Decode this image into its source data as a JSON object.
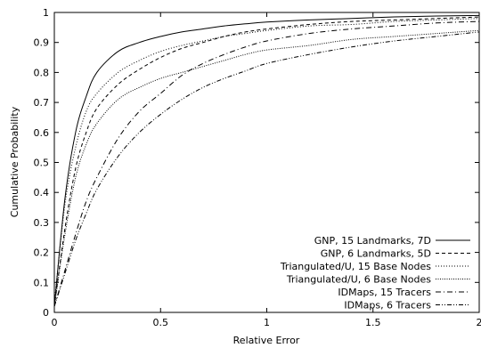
{
  "chart_data": {
    "type": "line",
    "xlabel": "Relative Error",
    "ylabel": "Cumulative Probability",
    "xlim": [
      0,
      2
    ],
    "ylim": [
      0,
      1
    ],
    "x_ticks": [
      0,
      0.5,
      1,
      1.5,
      2
    ],
    "x_tick_labels": [
      "0",
      "0.5",
      "1",
      "1.5",
      "2"
    ],
    "y_ticks": [
      0,
      0.1,
      0.2,
      0.3,
      0.4,
      0.5,
      0.6,
      0.7,
      0.8,
      0.9,
      1
    ],
    "y_tick_labels": [
      "0",
      "0.1",
      "0.2",
      "0.3",
      "0.4",
      "0.5",
      "0.6",
      "0.7",
      "0.8",
      "0.9",
      "1"
    ],
    "grid": false,
    "legend_position": "bottom-right",
    "x": [
      0,
      0.05,
      0.1,
      0.15,
      0.2,
      0.3,
      0.4,
      0.5,
      0.6,
      0.7,
      0.8,
      0.9,
      1.0,
      1.2,
      1.4,
      1.6,
      1.8,
      2.0
    ],
    "series": [
      {
        "name": "GNP, 15 Landmarks, 7D",
        "style": "solid",
        "values": [
          0.02,
          0.38,
          0.6,
          0.72,
          0.8,
          0.87,
          0.9,
          0.92,
          0.935,
          0.945,
          0.955,
          0.962,
          0.968,
          0.975,
          0.98,
          0.985,
          0.988,
          0.99
        ]
      },
      {
        "name": "GNP, 6 Landmarks, 5D",
        "style": "dashed",
        "values": [
          0.02,
          0.28,
          0.48,
          0.6,
          0.68,
          0.76,
          0.81,
          0.85,
          0.88,
          0.9,
          0.92,
          0.935,
          0.945,
          0.96,
          0.97,
          0.975,
          0.98,
          0.985
        ]
      },
      {
        "name": "Triangulated/U, 15 Base Nodes",
        "style": "dotted-fine",
        "values": [
          0.03,
          0.36,
          0.55,
          0.67,
          0.73,
          0.8,
          0.84,
          0.87,
          0.89,
          0.905,
          0.92,
          0.93,
          0.94,
          0.955,
          0.96,
          0.97,
          0.975,
          0.98
        ]
      },
      {
        "name": "Triangulated/U, 6 Base Nodes",
        "style": "dotted",
        "values": [
          0.02,
          0.26,
          0.45,
          0.56,
          0.63,
          0.71,
          0.75,
          0.78,
          0.8,
          0.82,
          0.84,
          0.86,
          0.875,
          0.89,
          0.91,
          0.92,
          0.93,
          0.94
        ]
      },
      {
        "name": "IDMaps, 15 Tracers",
        "style": "dash-dot",
        "values": [
          0.02,
          0.14,
          0.26,
          0.37,
          0.45,
          0.58,
          0.67,
          0.73,
          0.79,
          0.83,
          0.86,
          0.885,
          0.905,
          0.93,
          0.945,
          0.955,
          0.965,
          0.97
        ]
      },
      {
        "name": "IDMaps, 6 Tracers",
        "style": "dash-dot-dot",
        "values": [
          0.02,
          0.13,
          0.24,
          0.33,
          0.41,
          0.52,
          0.6,
          0.66,
          0.71,
          0.75,
          0.78,
          0.805,
          0.83,
          0.86,
          0.885,
          0.905,
          0.92,
          0.935
        ]
      }
    ]
  }
}
